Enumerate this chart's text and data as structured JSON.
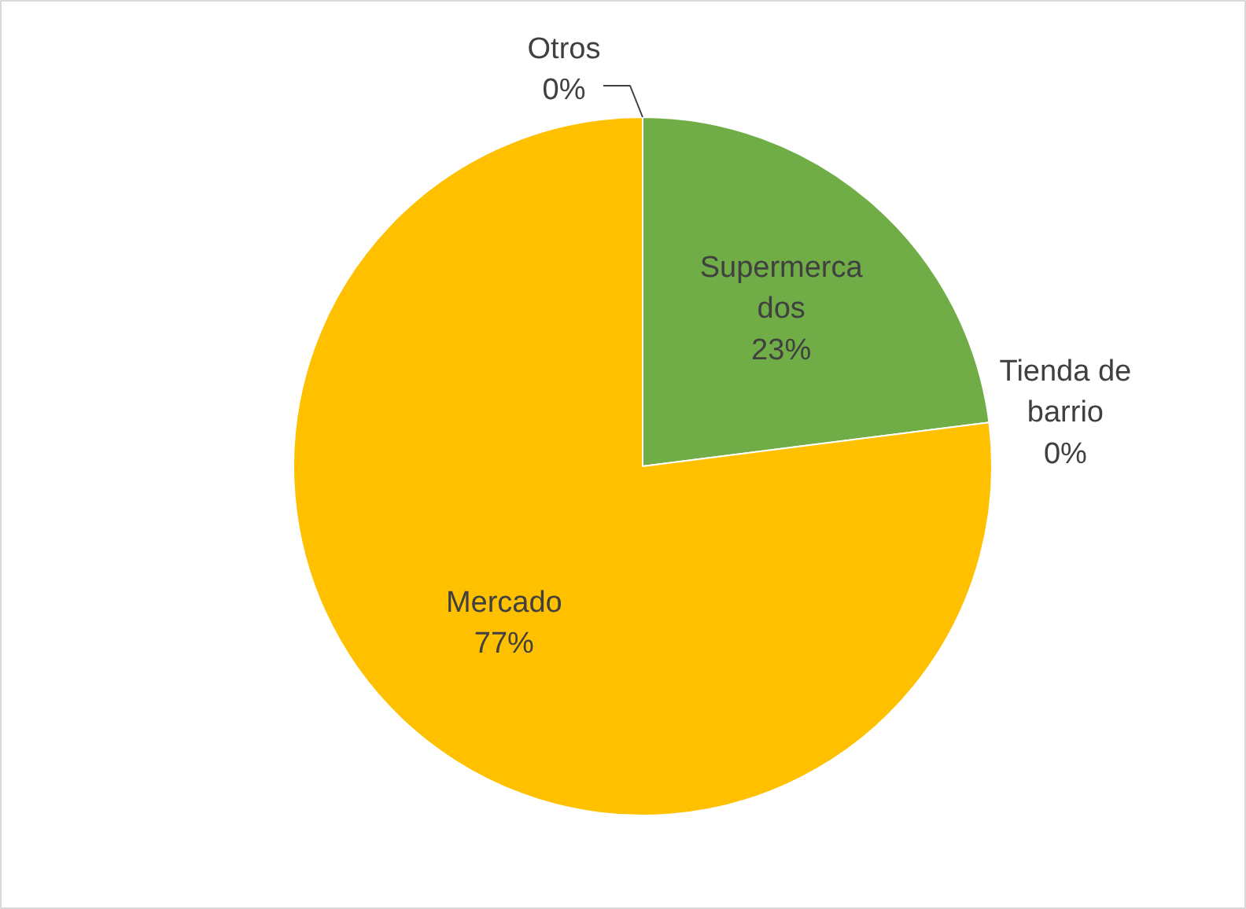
{
  "chart_data": {
    "type": "pie",
    "categories": [
      "Supermercados",
      "Tienda de barrio",
      "Mercado",
      "Otros"
    ],
    "values": [
      23,
      0,
      77,
      0
    ],
    "value_labels": [
      "23%",
      "0%",
      "77%",
      "0%"
    ],
    "colors": [
      "#70ad47",
      "#a5a5a5",
      "#ffc000",
      "#4472c4"
    ]
  }
}
